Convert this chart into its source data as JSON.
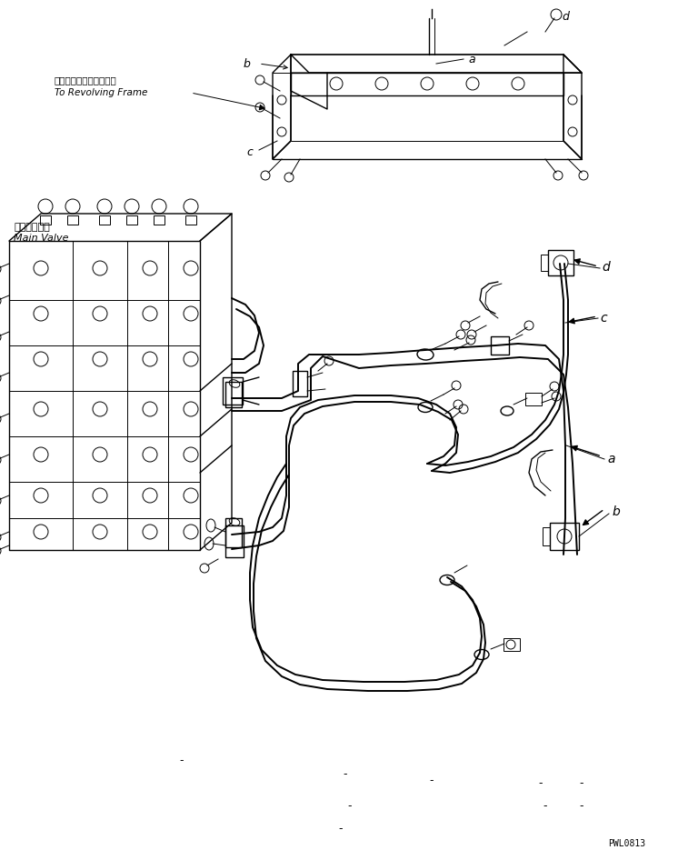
{
  "bg_color": "#ffffff",
  "line_color": "#000000",
  "fig_width": 7.46,
  "fig_height": 9.46,
  "dpi": 100,
  "watermark": "PWL0813",
  "label_top_jp": "レボルビングフレームへ",
  "label_top_en": "To Revolving Frame",
  "label_main_jp": "メインバルブ",
  "label_main_en": "Main Valve"
}
